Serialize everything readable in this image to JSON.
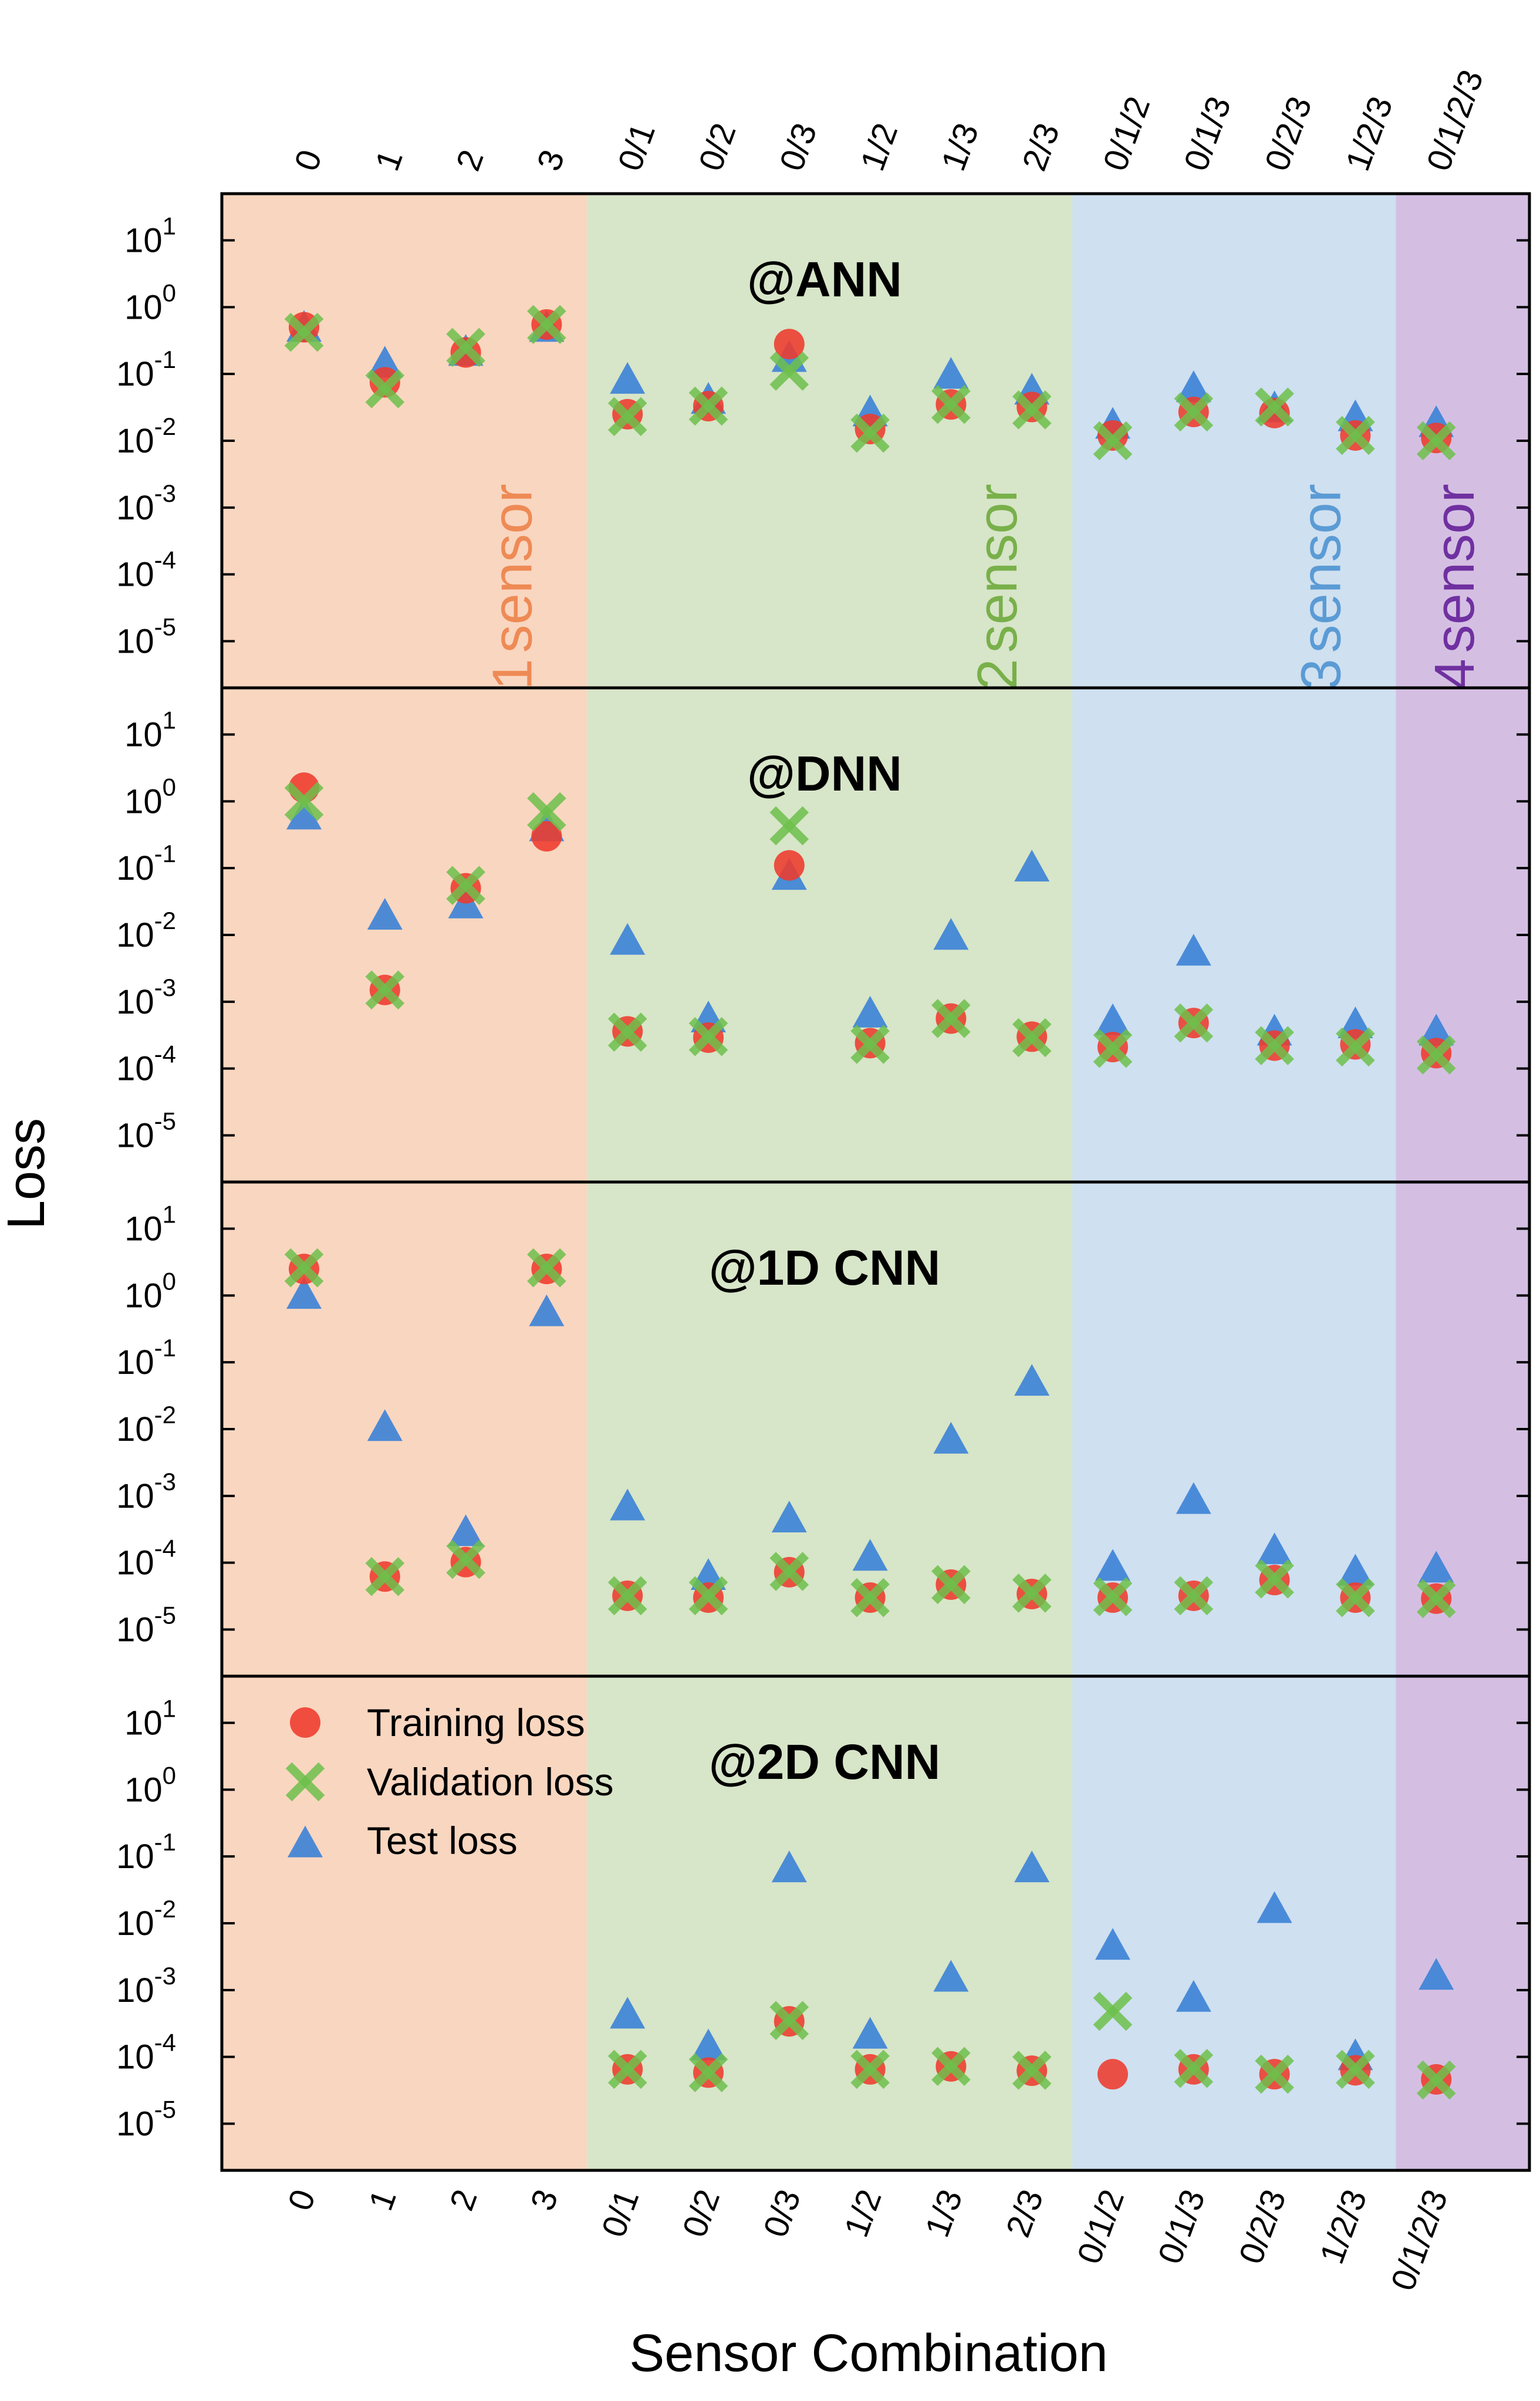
{
  "chart_data": {
    "type": "scatter",
    "ylabel": "Loss",
    "xlabel": "Sensor Combination",
    "y_scale": "log",
    "ylim": [
      2e-06,
      50
    ],
    "y_tick_exponents": [
      -5,
      -4,
      -3,
      -2,
      -1,
      0,
      1
    ],
    "categories": [
      "0",
      "1",
      "2",
      "3",
      "0/1",
      "0/2",
      "0/3",
      "1/2",
      "1/3",
      "2/3",
      "0/1/2",
      "0/1/3",
      "0/2/3",
      "1/2/3",
      "0/1/2/3"
    ],
    "groups": [
      {
        "digit": "1",
        "label": "sensor",
        "first_index": 0,
        "last_index": 3,
        "bg": "#f9d6c0",
        "text_color": "#ee8a55"
      },
      {
        "digit": "2",
        "label": "sensor",
        "first_index": 4,
        "last_index": 9,
        "bg": "#d7e5c8",
        "text_color": "#78b04a"
      },
      {
        "digit": "3",
        "label": "sensor",
        "first_index": 10,
        "last_index": 13,
        "bg": "#cfe0f0",
        "text_color": "#5b9bd5"
      },
      {
        "digit": "4",
        "label": "sensor",
        "first_index": 14,
        "last_index": 14,
        "bg": "#d4bfe3",
        "text_color": "#7030a0"
      }
    ],
    "legend": {
      "position": "top-left of last panel",
      "entries": [
        {
          "label": "Training loss",
          "marker": "circle",
          "color": "#ee3a2c"
        },
        {
          "label": "Validation loss",
          "marker": "x",
          "color": "#6dbf4b"
        },
        {
          "label": "Test loss",
          "marker": "triangle",
          "color": "#3b82d6"
        }
      ]
    },
    "panels": [
      {
        "title": "@ANN",
        "series": [
          {
            "name": "Training loss",
            "values": [
              0.5,
              0.075,
              0.21,
              0.55,
              0.025,
              0.033,
              0.28,
              0.015,
              0.035,
              0.032,
              0.012,
              0.027,
              0.026,
              0.012,
              0.011
            ]
          },
          {
            "name": "Validation loss",
            "values": [
              0.42,
              0.06,
              0.25,
              0.55,
              0.023,
              0.033,
              0.11,
              0.013,
              0.035,
              0.029,
              0.01,
              0.027,
              0.032,
              0.012,
              0.01
            ]
          },
          {
            "name": "Test loss",
            "values": [
              0.48,
              0.14,
              0.21,
              0.48,
              0.08,
              0.04,
              0.17,
              0.026,
              0.095,
              0.055,
              0.017,
              0.06,
              0.03,
              0.022,
              0.018
            ]
          }
        ]
      },
      {
        "title": "@DNN",
        "series": [
          {
            "name": "Training loss",
            "values": [
              1.6,
              0.0015,
              0.05,
              0.3,
              0.00036,
              0.00029,
              0.11,
              0.00024,
              0.00056,
              0.0003,
              0.00021,
              0.00048,
              0.00022,
              0.00023,
              0.00017
            ]
          },
          {
            "name": "Validation loss",
            "values": [
              1.0,
              0.0015,
              0.055,
              0.7,
              0.00035,
              0.0003,
              0.43,
              0.00023,
              0.00056,
              0.00029,
              0.0002,
              0.00048,
              0.00022,
              0.00021,
              0.00016
            ]
          },
          {
            "name": "Test loss",
            "values": [
              0.6,
              0.019,
              0.028,
              0.4,
              0.008,
              0.00055,
              0.075,
              0.00065,
              0.0095,
              0.1,
              0.0005,
              0.0055,
              0.00035,
              0.00045,
              0.00035
            ]
          }
        ]
      },
      {
        "title": "@1D CNN",
        "series": [
          {
            "name": "Training loss",
            "values": [
              2.5,
              6.2e-05,
              0.000102,
              2.5,
              3.2e-05,
              3e-05,
              7.2e-05,
              3e-05,
              4.7e-05,
              3.4e-05,
              3e-05,
              3.2e-05,
              5.5e-05,
              3e-05,
              2.9e-05
            ]
          },
          {
            "name": "Validation loss",
            "values": [
              2.6,
              6.2e-05,
              0.000112,
              2.6,
              3.2e-05,
              3.2e-05,
              7.4e-05,
              3e-05,
              4.7e-05,
              3.5e-05,
              3.1e-05,
              3.2e-05,
              5.7e-05,
              3e-05,
              2.9e-05
            ]
          },
          {
            "name": "Test loss",
            "values": [
              1.0,
              0.0105,
              0.00028,
              0.55,
              0.00068,
              6.2e-05,
              0.00045,
              0.00012,
              0.0068,
              0.05,
              8.5e-05,
              0.00085,
              0.00015,
              7.2e-05,
              8e-05
            ]
          }
        ]
      },
      {
        "title": "@2D CNN",
        "series": [
          {
            "name": "Training loss",
            "values": [
              null,
              null,
              null,
              null,
              6.5e-05,
              5.8e-05,
              0.00034,
              6.5e-05,
              7.2e-05,
              6.2e-05,
              5.5e-05,
              6.5e-05,
              5.5e-05,
              6.3e-05,
              4.6e-05
            ]
          },
          {
            "name": "Validation loss",
            "values": [
              null,
              null,
              null,
              null,
              6.5e-05,
              5.8e-05,
              0.00035,
              6.5e-05,
              7.2e-05,
              6.3e-05,
              0.00048,
              6.7e-05,
              5.5e-05,
              6.5e-05,
              4.5e-05
            ]
          },
          {
            "name": "Test loss",
            "values": [
              null,
              null,
              null,
              null,
              0.00042,
              0.00014,
              0.065,
              0.00021,
              0.0015,
              0.065,
              0.0045,
              0.00075,
              0.016,
              0.0001,
              0.0016
            ]
          }
        ]
      }
    ]
  }
}
